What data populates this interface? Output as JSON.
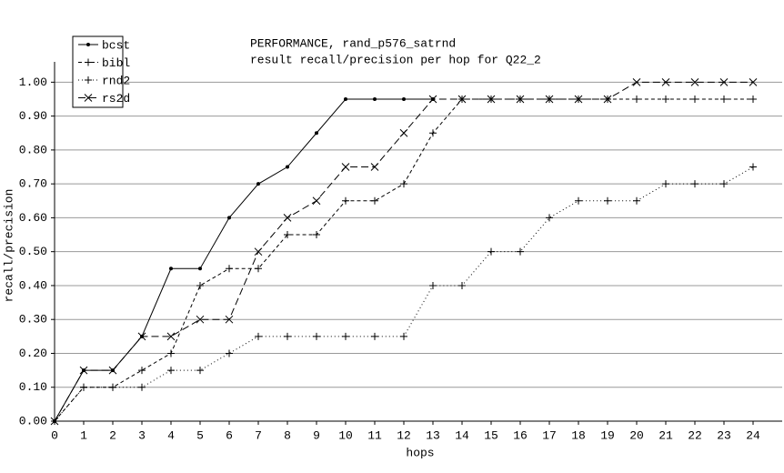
{
  "chart_data": {
    "type": "line",
    "title": "PERFORMANCE, rand_p576_satrnd",
    "subtitle": "result recall/precision per hop for Q22_2",
    "x_label": "hops",
    "y_label": "recall/precision",
    "x": [
      0,
      1,
      2,
      3,
      4,
      5,
      6,
      7,
      8,
      9,
      10,
      11,
      12,
      13,
      14,
      15,
      16,
      17,
      18,
      19,
      20,
      21,
      22,
      23,
      24
    ],
    "series": [
      {
        "name": "bcst",
        "color": "#000000",
        "dash": "solid",
        "marker": "dot",
        "values": [
          0,
          0.15,
          0.15,
          0.25,
          0.45,
          0.45,
          0.6,
          0.7,
          0.75,
          0.85,
          0.95,
          0.95,
          0.95,
          0.95,
          null,
          null,
          null,
          null,
          null,
          null,
          null,
          null,
          null,
          null,
          null
        ]
      },
      {
        "name": "bibl",
        "color": "#000000",
        "dash": "dashed",
        "marker": "plus",
        "values": [
          0,
          0.1,
          0.1,
          0.15,
          0.2,
          0.4,
          0.45,
          0.45,
          0.55,
          0.55,
          0.65,
          0.65,
          0.7,
          0.85,
          0.95,
          0.95,
          0.95,
          0.95,
          0.95,
          0.95,
          0.95,
          0.95,
          0.95,
          0.95,
          0.95
        ]
      },
      {
        "name": "rnd2",
        "color": "#000000",
        "dash": "dotted",
        "marker": "plus",
        "values": [
          0,
          0.1,
          0.1,
          0.1,
          0.15,
          0.15,
          0.2,
          0.25,
          0.25,
          0.25,
          0.25,
          0.25,
          0.25,
          0.4,
          0.4,
          0.5,
          0.5,
          0.6,
          0.65,
          0.65,
          0.65,
          0.7,
          0.7,
          0.7,
          0.75
        ]
      },
      {
        "name": "rs2d",
        "color": "#000000",
        "dash": "longdash",
        "marker": "x",
        "values": [
          0,
          0.15,
          0.15,
          0.25,
          0.25,
          0.3,
          0.3,
          0.5,
          0.6,
          0.65,
          0.75,
          0.75,
          0.85,
          0.95,
          0.95,
          0.95,
          0.95,
          0.95,
          0.95,
          0.95,
          1.0,
          1.0,
          1.0,
          1.0,
          1.0
        ]
      }
    ],
    "xlim": [
      0,
      25
    ],
    "ylim": [
      0,
      1.06
    ],
    "xticks": [
      0,
      1,
      2,
      3,
      4,
      5,
      6,
      7,
      8,
      9,
      10,
      11,
      12,
      13,
      14,
      15,
      16,
      17,
      18,
      19,
      20,
      21,
      22,
      23,
      24
    ],
    "yticks": [
      {
        "value": 0,
        "label": "0.00"
      },
      {
        "value": 0.1,
        "label": "0.10"
      },
      {
        "value": 0.2,
        "label": "0.20"
      },
      {
        "value": 0.3,
        "label": "0.30"
      },
      {
        "value": 0.4,
        "label": "0.40"
      },
      {
        "value": 0.5,
        "label": "0.50"
      },
      {
        "value": 0.6,
        "label": "0.60"
      },
      {
        "value": 0.7,
        "label": "0.70"
      },
      {
        "value": 0.8,
        "label": "0.80"
      },
      {
        "value": 0.9,
        "label": "0.90"
      },
      {
        "value": 1,
        "label": "1.00"
      }
    ],
    "grid": true,
    "legend": "top-left"
  }
}
